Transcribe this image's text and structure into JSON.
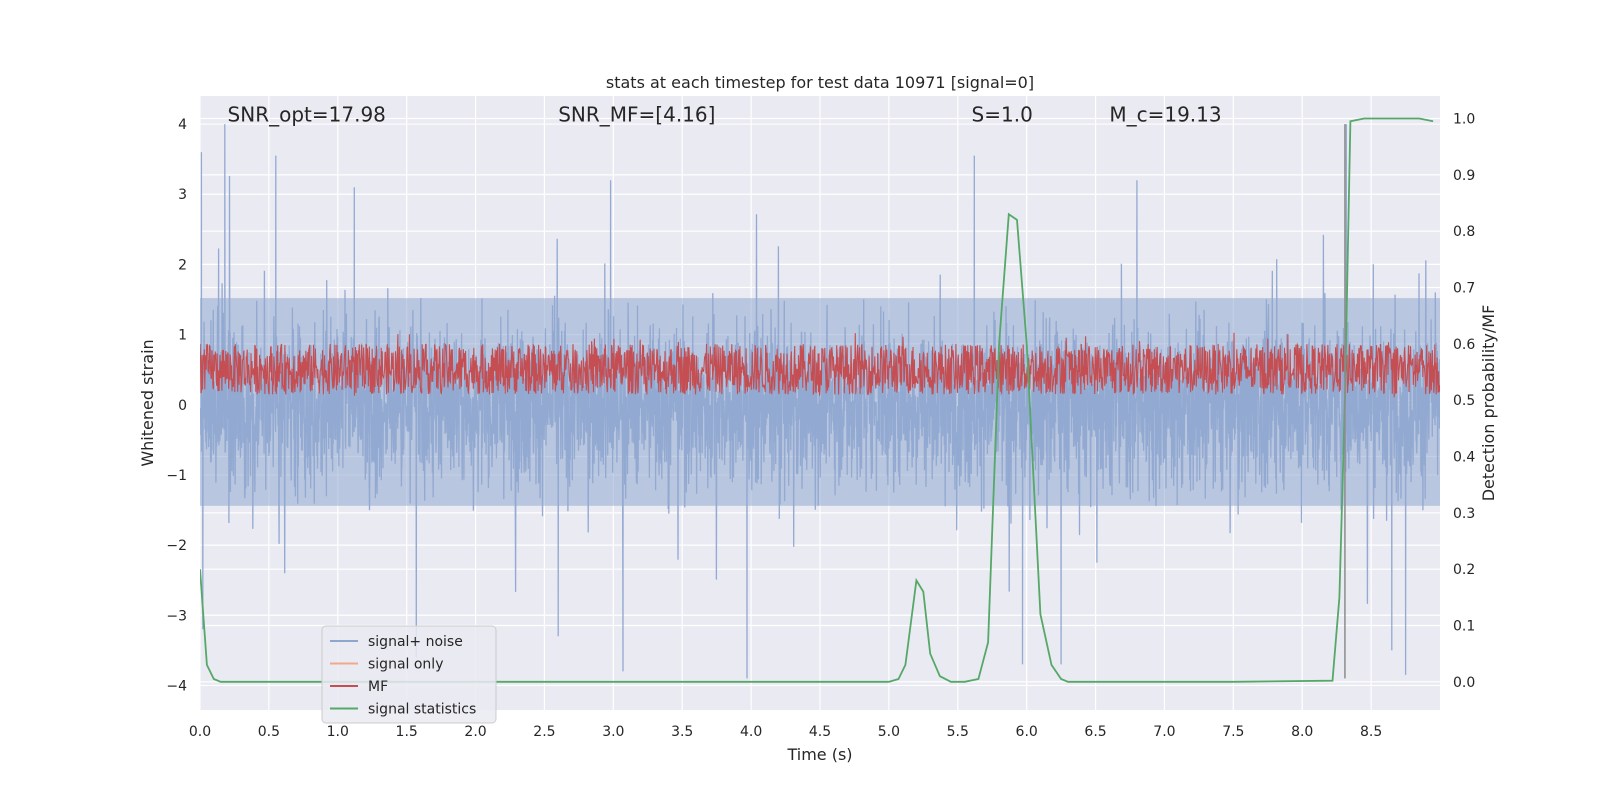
{
  "chart_data": {
    "type": "line",
    "title": "stats at each timestep for test data 10971 [signal=0]",
    "xlabel": "Time (s)",
    "ylabel_left": "Whitened strain",
    "ylabel_right": "Detection probability/MF",
    "xlim": [
      0.0,
      9.0
    ],
    "ylim_left": [
      -4.35,
      4.4
    ],
    "ylim_right": [
      -0.05,
      1.04
    ],
    "x_ticks": [
      0.0,
      0.5,
      1.0,
      1.5,
      2.0,
      2.5,
      3.0,
      3.5,
      4.0,
      4.5,
      5.0,
      5.5,
      6.0,
      6.5,
      7.0,
      7.5,
      8.0,
      8.5
    ],
    "x_tick_labels": [
      "0.0",
      "0.5",
      "1.0",
      "1.5",
      "2.0",
      "2.5",
      "3.0",
      "3.5",
      "4.0",
      "4.5",
      "5.0",
      "5.5",
      "6.0",
      "6.5",
      "7.0",
      "7.5",
      "8.0",
      "8.5"
    ],
    "y_left_ticks": [
      -4,
      -3,
      -2,
      -1,
      0,
      1,
      2,
      3,
      4
    ],
    "y_left_tick_labels": [
      "−4",
      "−3",
      "−2",
      "−1",
      "0",
      "1",
      "2",
      "3",
      "4"
    ],
    "y_right_ticks": [
      0.0,
      0.1,
      0.2,
      0.3,
      0.4,
      0.5,
      0.6,
      0.7,
      0.8,
      0.9,
      1.0
    ],
    "y_right_tick_labels": [
      "0.0",
      "0.1",
      "0.2",
      "0.3",
      "0.4",
      "0.5",
      "0.6",
      "0.7",
      "0.8",
      "0.9",
      "1.0"
    ],
    "annotations": [
      {
        "id": "snr-opt",
        "label": "SNR_opt=17.98",
        "x": 0.2,
        "y": 4.12
      },
      {
        "id": "snr-mf",
        "label": "SNR_MF=[4.16]",
        "x": 2.6,
        "y": 4.12
      },
      {
        "id": "s-value",
        "label": "S=1.0",
        "x": 5.6,
        "y": 4.12
      },
      {
        "id": "mc-value",
        "label": "M_c=19.13",
        "x": 6.6,
        "y": 4.12
      }
    ],
    "legend": {
      "position": "lower-left",
      "entries": [
        {
          "label": "signal+ noise",
          "color": "#8fa7d0"
        },
        {
          "label": "signal only",
          "color": "#f0a98a"
        },
        {
          "label": "MF",
          "color": "#c44e52"
        },
        {
          "label": "signal statistics",
          "color": "#55a868"
        }
      ]
    },
    "series": [
      {
        "name": "signal+ noise",
        "axis": "left",
        "color": "#8fa7d0",
        "style": "dense noise band",
        "x_range": [
          0.0,
          9.0
        ],
        "typical_range": [
          -1.8,
          1.9
        ],
        "max": 4.0,
        "min": -3.9,
        "peaks": [
          {
            "x": 0.01,
            "y": 3.6
          },
          {
            "x": 0.18,
            "y": 4.0
          },
          {
            "x": 0.55,
            "y": 3.55
          },
          {
            "x": 1.12,
            "y": 3.1
          },
          {
            "x": 2.98,
            "y": 3.2
          },
          {
            "x": 5.62,
            "y": 3.55
          },
          {
            "x": 6.8,
            "y": 3.2
          },
          {
            "x": 8.32,
            "y": 4.0
          }
        ],
        "troughs": [
          {
            "x": 0.02,
            "y": -3.2
          },
          {
            "x": 1.57,
            "y": -3.6
          },
          {
            "x": 2.6,
            "y": -3.3
          },
          {
            "x": 3.07,
            "y": -3.8
          },
          {
            "x": 3.97,
            "y": -3.9
          },
          {
            "x": 5.97,
            "y": -3.7
          },
          {
            "x": 6.25,
            "y": -3.7
          },
          {
            "x": 8.65,
            "y": -3.5
          },
          {
            "x": 8.75,
            "y": -3.85
          }
        ]
      },
      {
        "name": "MF",
        "axis": "right",
        "color": "#c44e52",
        "style": "dense noise band",
        "x_range": [
          0.0,
          9.0
        ],
        "typical_range": [
          0.51,
          0.6
        ],
        "max": 0.62,
        "min": 0.505
      },
      {
        "name": "signal statistics",
        "axis": "right",
        "color": "#55a868",
        "x": [
          0.0,
          0.05,
          0.1,
          0.15,
          0.3,
          0.8,
          1.5,
          2.5,
          3.5,
          4.5,
          5.0,
          5.07,
          5.12,
          5.2,
          5.25,
          5.3,
          5.37,
          5.45,
          5.55,
          5.65,
          5.72,
          5.8,
          5.87,
          5.93,
          6.0,
          6.1,
          6.18,
          6.25,
          6.3,
          6.5,
          7.5,
          8.22,
          8.27,
          8.31,
          8.35,
          8.45,
          8.7,
          8.85,
          8.95
        ],
        "y": [
          0.2,
          0.03,
          0.005,
          0.0,
          0.0,
          0.0,
          0.0,
          0.0,
          0.0,
          0.0,
          0.0,
          0.005,
          0.03,
          0.18,
          0.16,
          0.05,
          0.01,
          0.0,
          0.0,
          0.005,
          0.07,
          0.6,
          0.83,
          0.82,
          0.6,
          0.12,
          0.03,
          0.005,
          0.0,
          0.0,
          0.0,
          0.002,
          0.15,
          0.5,
          0.995,
          1.0,
          1.0,
          1.0,
          0.995
        ]
      },
      {
        "name": "marker",
        "axis": "left",
        "color": "#8c8c8c",
        "style": "vertical line",
        "x": 8.31,
        "y_range": [
          -3.9,
          4.0
        ]
      }
    ]
  }
}
